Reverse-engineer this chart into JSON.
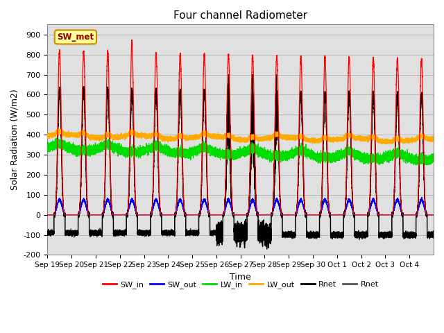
{
  "title": "Four channel Radiometer",
  "xlabel": "Time",
  "ylabel": "Solar Radiation (W/m2)",
  "ylim": [
    -200,
    950
  ],
  "yticks": [
    -200,
    -100,
    0,
    100,
    200,
    300,
    400,
    500,
    600,
    700,
    800,
    900
  ],
  "annotation_text": "SW_met",
  "annotation_color": "#8b0000",
  "annotation_bg": "#ffff99",
  "annotation_border": "#cc8800",
  "n_days": 16,
  "xtick_labels": [
    "Sep 19",
    "Sep 20",
    "Sep 21",
    "Sep 22",
    "Sep 23",
    "Sep 24",
    "Sep 25",
    "Sep 26",
    "Sep 27",
    "Sep 28",
    "Sep 29",
    "Sep 30",
    "Oct 1",
    "Oct 2",
    "Oct 3",
    "Oct 4"
  ],
  "SW_in_color": "#ff0000",
  "SW_out_color": "#0000ff",
  "LW_in_color": "#00dd00",
  "LW_out_color": "#ffaa00",
  "Rnet1_color": "#000000",
  "Rnet2_color": "#555555",
  "plot_bg": "#e0e0e0",
  "legend_entries": [
    {
      "label": "SW_in",
      "color": "#ff0000"
    },
    {
      "label": "SW_out",
      "color": "#0000ff"
    },
    {
      "label": "LW_in",
      "color": "#00dd00"
    },
    {
      "label": "LW_out",
      "color": "#ffaa00"
    },
    {
      "label": "Rnet",
      "color": "#000000"
    },
    {
      "label": "Rnet",
      "color": "#555555"
    }
  ]
}
